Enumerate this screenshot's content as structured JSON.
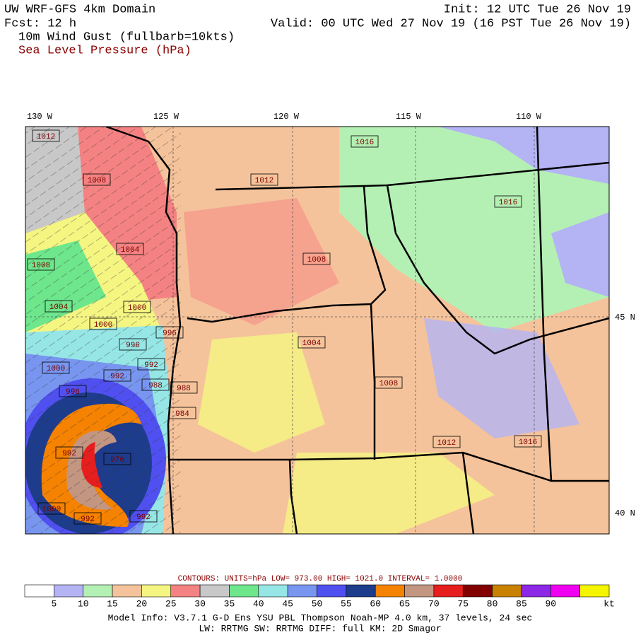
{
  "header": {
    "title": "UW WRF-GFS 4km Domain",
    "init": "Init: 12 UTC Tue 26 Nov 19",
    "fcst": "Fcst:   12 h",
    "valid": "Valid: 00 UTC Wed 27 Nov 19 (16 PST Tue 26 Nov 19)",
    "field1": "10m Wind Gust (fullbarb=10kts)",
    "field2": "Sea Level Pressure (hPa)"
  },
  "map": {
    "lon_labels": [
      "130 W",
      "125 W",
      "120 W",
      "115 W",
      "110 W"
    ],
    "lat_labels": [
      "45 N",
      "40 N"
    ],
    "pressure_labels": [
      "1012",
      "1008",
      "1004",
      "1000",
      "1000",
      "1004",
      "1008",
      "996",
      "996",
      "992",
      "992",
      "988",
      "988",
      "984",
      "996",
      "1000",
      "992",
      "976",
      "1000",
      "992",
      "992",
      "1016",
      "1012",
      "1016",
      "1008",
      "1004",
      "1008",
      "1012",
      "1016"
    ]
  },
  "contours": "CONTOURS:  UNITS=hPa  LOW=   973.00      HIGH=   1021.0       INTERVAL=     1.0000",
  "colorbar": {
    "colors": [
      "#ffffff",
      "#b4b4f5",
      "#b4f0b4",
      "#f5c39b",
      "#f5f582",
      "#f58282",
      "#c8c8c8",
      "#6ee68c",
      "#96e6e6",
      "#7896f0",
      "#5050f0",
      "#1e3c8c",
      "#f58200",
      "#c39682",
      "#e61e1e",
      "#820000",
      "#c88200",
      "#8c28e6",
      "#f000f0",
      "#f5f500"
    ],
    "ticks": [
      5,
      10,
      15,
      20,
      25,
      30,
      35,
      40,
      45,
      50,
      55,
      60,
      65,
      70,
      75,
      80,
      85,
      90
    ],
    "unit": "kt"
  },
  "footer": {
    "line1": "Model Info: V3.7.1    G-D Ens YSU PBL  Thompson   Noah-MP   4.0 km,  37 levels,   24 sec",
    "line2": "LW: RRTMG SW: RRTMG    DIFF: full    KM: 2D Smagor"
  }
}
